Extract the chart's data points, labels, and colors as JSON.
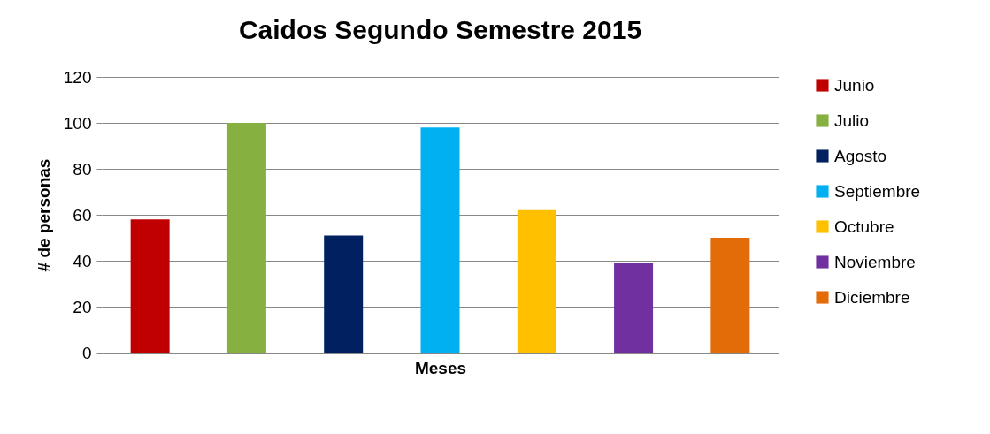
{
  "chart_data": {
    "type": "bar",
    "title": "Caidos Segundo Semestre 2015",
    "xlabel": "Meses",
    "ylabel": "# de personas",
    "categories": [
      null,
      null,
      null,
      null,
      null,
      null,
      null
    ],
    "series": [
      {
        "name": "Junio",
        "color": "#c00000",
        "values": [
          58,
          null,
          null,
          null,
          null,
          null,
          null
        ]
      },
      {
        "name": "Julio",
        "color": "#86b03f",
        "values": [
          null,
          100,
          null,
          null,
          null,
          null,
          null
        ]
      },
      {
        "name": "Agosto",
        "color": "#002060",
        "values": [
          null,
          null,
          51,
          null,
          null,
          null,
          null
        ]
      },
      {
        "name": "Septiembre",
        "color": "#00b0f0",
        "values": [
          null,
          null,
          null,
          98,
          null,
          null,
          null
        ]
      },
      {
        "name": "Octubre",
        "color": "#ffc000",
        "values": [
          null,
          null,
          null,
          null,
          62,
          null,
          null
        ]
      },
      {
        "name": "Noviembre",
        "color": "#7030a0",
        "values": [
          null,
          null,
          null,
          null,
          null,
          39,
          null
        ]
      },
      {
        "name": "Diciembre",
        "color": "#e36c09",
        "values": [
          null,
          null,
          null,
          null,
          null,
          null,
          50
        ]
      }
    ],
    "ylim": [
      0,
      120
    ],
    "yticks": [
      0,
      20,
      40,
      60,
      80,
      100,
      120
    ],
    "grid": "y",
    "legend": "right",
    "tick_labels": "y"
  }
}
